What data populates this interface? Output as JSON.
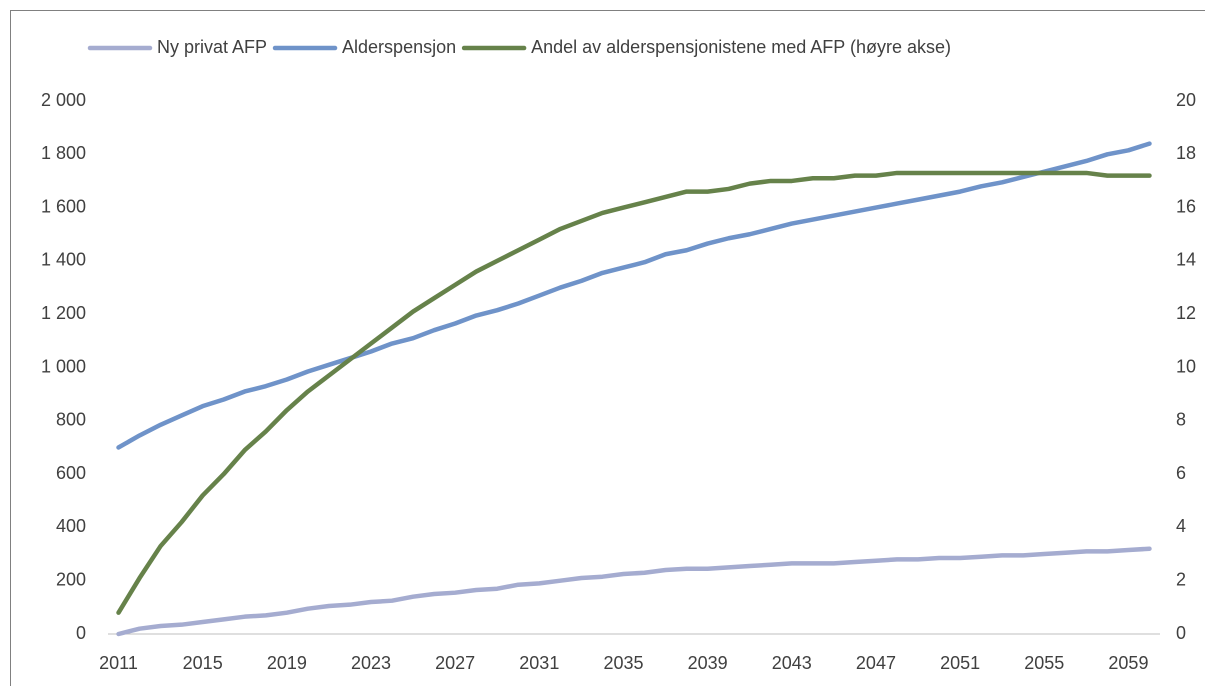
{
  "chart_data": {
    "type": "line",
    "categories": [
      2011,
      null,
      null,
      null,
      2015,
      null,
      null,
      null,
      2019,
      null,
      null,
      null,
      2023,
      null,
      null,
      null,
      2027,
      null,
      null,
      null,
      2031,
      null,
      null,
      null,
      2035,
      null,
      null,
      null,
      2039,
      null,
      null,
      null,
      2043,
      null,
      null,
      null,
      2047,
      null,
      null,
      null,
      2051,
      null,
      null,
      null,
      2055,
      null,
      null,
      null,
      2059,
      null
    ],
    "series": [
      {
        "name": "Ny privat AFP",
        "color": "#a5acd0",
        "values": [
          0,
          20,
          30,
          35,
          45,
          55,
          65,
          70,
          80,
          95,
          105,
          110,
          120,
          125,
          140,
          150,
          155,
          165,
          170,
          185,
          190,
          200,
          210,
          215,
          225,
          230,
          240,
          245,
          245,
          250,
          255,
          260,
          265,
          265,
          265,
          270,
          275,
          280,
          280,
          285,
          285,
          290,
          295,
          295,
          300,
          305,
          310,
          310,
          315,
          320
        ]
      },
      {
        "name": "Alderspensjon",
        "color": "#6f93c9",
        "values": [
          700,
          745,
          785,
          820,
          855,
          880,
          910,
          930,
          955,
          985,
          1010,
          1035,
          1060,
          1090,
          1110,
          1140,
          1165,
          1195,
          1215,
          1240,
          1270,
          1300,
          1325,
          1355,
          1375,
          1395,
          1425,
          1440,
          1465,
          1485,
          1500,
          1520,
          1540,
          1555,
          1570,
          1585,
          1600,
          1615,
          1630,
          1645,
          1660,
          1680,
          1695,
          1715,
          1735,
          1755,
          1775,
          1800,
          1815,
          1840
        ]
      },
      {
        "name": "Andel av alderspensjonistene med AFP (høyre akse)",
        "color": "#66824a",
        "axis": "y2",
        "values": [
          0.8,
          2.1,
          3.3,
          4.2,
          5.2,
          6.0,
          6.9,
          7.6,
          8.4,
          9.1,
          9.7,
          10.3,
          10.9,
          11.5,
          12.1,
          12.6,
          13.1,
          13.6,
          14.0,
          14.4,
          14.8,
          15.2,
          15.5,
          15.8,
          16.0,
          16.2,
          16.4,
          16.6,
          16.6,
          16.7,
          16.9,
          17.0,
          17.0,
          17.1,
          17.1,
          17.2,
          17.2,
          17.3,
          17.3,
          17.3,
          17.3,
          17.3,
          17.3,
          17.3,
          17.3,
          17.3,
          17.3,
          17.2,
          17.2,
          17.2
        ]
      }
    ],
    "ylim": [
      0,
      2000
    ],
    "yticks": [
      0,
      200,
      400,
      600,
      800,
      {
        "value": 1000,
        "label": "1 000"
      },
      {
        "value": 1200,
        "label": "1 200"
      },
      {
        "value": 1400,
        "label": "1 400"
      },
      {
        "value": 1600,
        "label": "1 600"
      },
      {
        "value": 1800,
        "label": "1 800"
      },
      {
        "value": 2000,
        "label": "2 000"
      }
    ],
    "y2lim": [
      0,
      20
    ],
    "y2ticks": [
      0,
      2,
      4,
      6,
      8,
      10,
      12,
      14,
      16,
      18,
      20
    ],
    "grid": false,
    "legend": "top"
  }
}
